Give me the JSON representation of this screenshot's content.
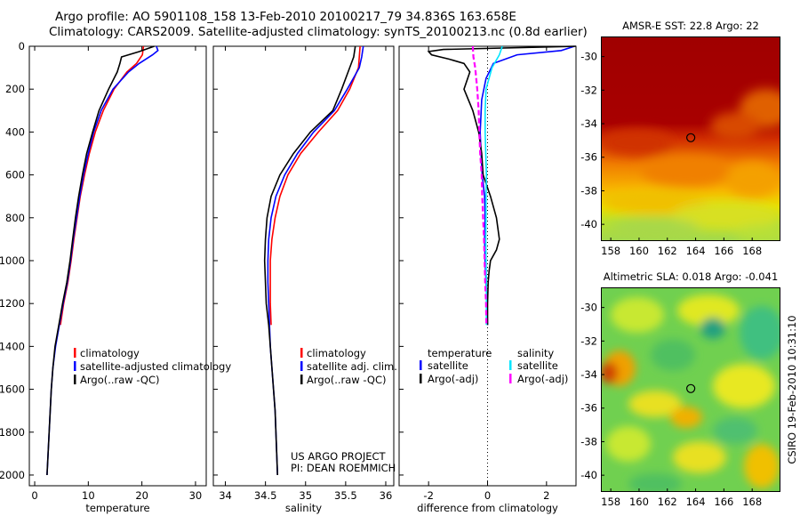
{
  "header": {
    "title_line1": "Argo profile: AO 5901108_158 13-Feb-2010 20100217_79 34.836S 163.658E",
    "title_line2": "Climatology: CARS2009. Satellite-adjusted climatology: synTS_20100213.nc (0.8d earlier)"
  },
  "colors": {
    "climatology": "#ff0000",
    "satellite": "#0000ff",
    "argo": "#000000",
    "sat_salinity": "#00e5ff",
    "argo_adj_salinity": "#ff00ff"
  },
  "chart_data": [
    {
      "type": "line",
      "name": "temperature_profile",
      "xlabel": "temperature",
      "ylabel": "",
      "xlim": [
        -1,
        32
      ],
      "ylim": [
        2050,
        0
      ],
      "y_inverted": true,
      "xticks": [
        0,
        10,
        20,
        30
      ],
      "yticks": [
        0,
        200,
        400,
        600,
        800,
        1000,
        1200,
        1400,
        1600,
        1800,
        2000
      ],
      "legend": [
        "climatology",
        "satellite-adjusted climatology",
        "Argo(..raw -QC)"
      ],
      "legend_placement": "lower-right",
      "series": [
        {
          "name": "climatology",
          "color": "#ff0000",
          "depth": [
            0,
            40,
            80,
            120,
            200,
            300,
            400,
            500,
            600,
            700,
            800,
            900,
            1000,
            1100,
            1200,
            1300
          ],
          "values": [
            20.3,
            20.1,
            19.0,
            17.2,
            14.8,
            12.8,
            11.3,
            10.2,
            9.3,
            8.5,
            7.9,
            7.3,
            6.8,
            6.2,
            5.4,
            4.8
          ]
        },
        {
          "name": "satellite-adjusted climatology",
          "color": "#0000ff",
          "depth": [
            0,
            20,
            40,
            80,
            120,
            200,
            300,
            400,
            500,
            600,
            700,
            800,
            900,
            1000,
            1100,
            1200,
            1300,
            1400,
            1500,
            1600,
            1700,
            1800,
            1900,
            2000
          ],
          "values": [
            22.7,
            23.0,
            22.0,
            19.5,
            17.5,
            14.6,
            12.4,
            11.0,
            10.0,
            9.1,
            8.4,
            7.8,
            7.2,
            6.7,
            6.1,
            5.3,
            4.6,
            3.9,
            3.4,
            3.1,
            2.9,
            2.7,
            2.5,
            2.3
          ]
        },
        {
          "name": "Argo(..raw -QC)",
          "color": "#000000",
          "depth": [
            0,
            25,
            50,
            80,
            120,
            200,
            300,
            400,
            500,
            600,
            700,
            800,
            900,
            1000,
            1100,
            1200,
            1300,
            1400,
            1500,
            1600,
            1700,
            1800,
            1900,
            2000
          ],
          "values": [
            22.3,
            19.5,
            16.2,
            15.9,
            15.4,
            13.8,
            12.0,
            10.8,
            9.7,
            8.9,
            8.2,
            7.6,
            7.1,
            6.6,
            6.0,
            5.2,
            4.5,
            3.8,
            3.4,
            3.1,
            2.9,
            2.7,
            2.5,
            2.3
          ]
        }
      ]
    },
    {
      "type": "line",
      "name": "salinity_profile",
      "xlabel": "salinity",
      "ylabel": "",
      "xlim": [
        33.85,
        36.1
      ],
      "ylim": [
        2050,
        0
      ],
      "y_inverted": true,
      "xticks": [
        34,
        34.5,
        35,
        35.5,
        36
      ],
      "xtick_labels": [
        "34",
        "34.5",
        "35",
        "35.5",
        "36"
      ],
      "legend": [
        "climatology",
        "satellite adj. clim.",
        "Argo(..raw -QC)"
      ],
      "legend_placement": "lower-right",
      "footer_text": [
        "US ARGO PROJECT",
        "PI: DEAN ROEMMICH"
      ],
      "series": [
        {
          "name": "climatology",
          "color": "#ff0000",
          "depth": [
            0,
            50,
            100,
            200,
            300,
            400,
            500,
            600,
            700,
            800,
            900,
            1000,
            1100,
            1200,
            1300
          ],
          "values": [
            35.68,
            35.67,
            35.66,
            35.55,
            35.4,
            35.16,
            34.94,
            34.78,
            34.68,
            34.62,
            34.58,
            34.56,
            34.56,
            34.56,
            34.57
          ]
        },
        {
          "name": "satellite adj. clim.",
          "color": "#0000ff",
          "depth": [
            0,
            50,
            100,
            200,
            300,
            400,
            500,
            600,
            700,
            800,
            900,
            1000,
            1100,
            1200,
            1300,
            1400,
            1500,
            1600,
            1700,
            1800,
            1900,
            2000
          ],
          "values": [
            35.72,
            35.7,
            35.67,
            35.52,
            35.36,
            35.1,
            34.9,
            34.74,
            34.63,
            34.57,
            34.54,
            34.53,
            34.53,
            34.54,
            34.55,
            34.56,
            34.58,
            34.6,
            34.62,
            34.63,
            34.64,
            34.65
          ]
        },
        {
          "name": "Argo(..raw -QC)",
          "color": "#000000",
          "depth": [
            0,
            50,
            100,
            200,
            300,
            400,
            500,
            600,
            700,
            800,
            900,
            1000,
            1100,
            1200,
            1300,
            1400,
            1500,
            1600,
            1700,
            1800,
            1900,
            2000
          ],
          "values": [
            35.62,
            35.6,
            35.55,
            35.45,
            35.34,
            35.06,
            34.85,
            34.68,
            34.57,
            34.52,
            34.5,
            34.49,
            34.5,
            34.51,
            34.54,
            34.56,
            34.58,
            34.6,
            34.62,
            34.63,
            34.64,
            34.65
          ]
        }
      ]
    },
    {
      "type": "line",
      "name": "difference_profile",
      "xlabel": "difference from climatology",
      "ylabel": "",
      "xlim": [
        -3.0,
        3.0
      ],
      "ylim": [
        2050,
        0
      ],
      "y_inverted": true,
      "xticks": [
        -2,
        0,
        2
      ],
      "zero_line": "dotted",
      "legend": [
        "temperature",
        "satellite",
        "Argo(-adj)",
        "salinity",
        "satellite",
        "Argo(-adj)"
      ],
      "legend_placement": "lower-middle",
      "series": [
        {
          "name": "temperature satellite",
          "color": "#0000ff",
          "depth": [
            0,
            20,
            40,
            80,
            150,
            250,
            400,
            500,
            600,
            700,
            800,
            900,
            1000,
            1100,
            1200,
            1300
          ],
          "values": [
            2.95,
            2.5,
            1.0,
            0.2,
            -0.05,
            -0.2,
            -0.25,
            -0.22,
            -0.18,
            -0.1,
            -0.08,
            -0.1,
            -0.08,
            -0.05,
            -0.02,
            0
          ]
        },
        {
          "name": "temperature Argo(-adj)",
          "color": "#000000",
          "depth": [
            0,
            15,
            25,
            40,
            60,
            80,
            120,
            200,
            300,
            400,
            500,
            600,
            700,
            800,
            900,
            950,
            1000,
            1050,
            1100,
            1200,
            1300
          ],
          "values": [
            3.0,
            -1.5,
            -2.0,
            -1.9,
            -1.3,
            -0.8,
            -0.6,
            -0.8,
            -0.5,
            -0.3,
            -0.2,
            -0.15,
            0.1,
            0.3,
            0.4,
            0.3,
            0.1,
            0.05,
            0.02,
            0,
            0
          ]
        },
        {
          "name": "salinity satellite",
          "color": "#00e5ff",
          "depth": [
            0,
            40,
            100,
            200,
            300,
            400,
            500,
            600,
            700,
            800,
            900,
            1000,
            1100,
            1200,
            1300
          ],
          "values": [
            0.5,
            0.4,
            0.15,
            -0.05,
            -0.08,
            -0.08,
            -0.06,
            -0.04,
            -0.05,
            -0.05,
            -0.06,
            -0.05,
            -0.04,
            -0.04,
            -0.04
          ]
        },
        {
          "name": "salinity Argo(-adj)",
          "color": "#ff00ff",
          "dashed": true,
          "depth": [
            0,
            50,
            100,
            200,
            300,
            400,
            500,
            600,
            700,
            800,
            900,
            1000,
            1100,
            1200,
            1300
          ],
          "values": [
            -0.5,
            -0.48,
            -0.42,
            -0.35,
            -0.3,
            -0.28,
            -0.25,
            -0.2,
            -0.18,
            -0.15,
            -0.12,
            -0.1,
            -0.08,
            -0.05,
            -0.04
          ]
        }
      ]
    },
    {
      "type": "heatmap",
      "name": "sst_map",
      "title": "AMSR-E SST: 22.8 Argo: 22",
      "xticks": [
        158,
        160,
        162,
        164,
        166,
        168
      ],
      "yticks": [
        -30,
        -32,
        -34,
        -36,
        -38,
        -40
      ],
      "xlim": [
        157.3,
        170.0
      ],
      "ylim": [
        -41.0,
        -28.8
      ],
      "marker": {
        "lon": 163.658,
        "lat": -34.836
      }
    },
    {
      "type": "heatmap",
      "name": "sla_map",
      "title": "Altimetric SLA: 0.018 Argo: -0.041",
      "xticks": [
        158,
        160,
        162,
        164,
        166,
        168
      ],
      "yticks": [
        -30,
        -32,
        -34,
        -36,
        -38,
        -40
      ],
      "xlim": [
        157.3,
        170.0
      ],
      "ylim": [
        -41.0,
        -28.8
      ],
      "marker": {
        "lon": 163.658,
        "lat": -34.836
      },
      "side_label": "CSIRO 19-Feb-2010 10:31:10"
    }
  ]
}
